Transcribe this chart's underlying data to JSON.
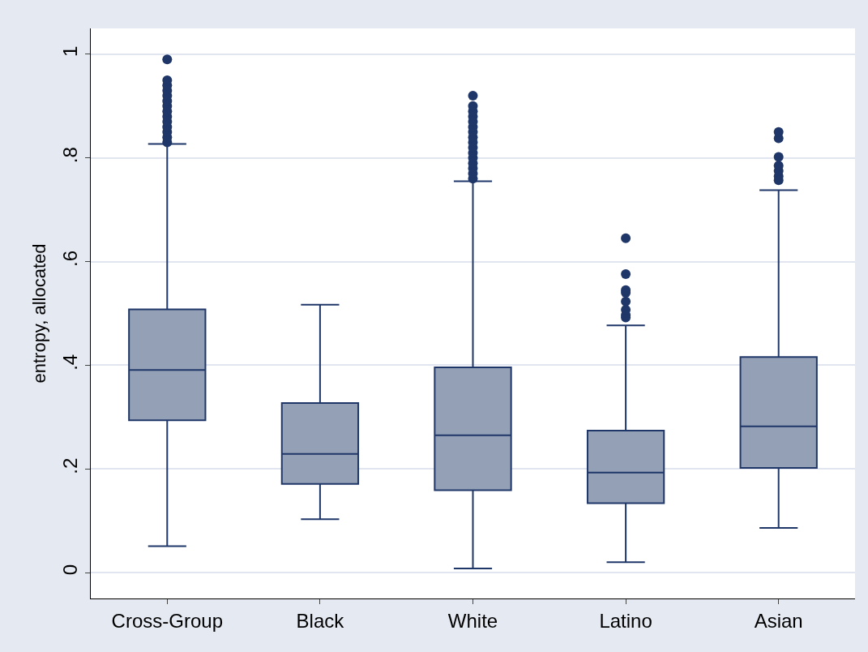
{
  "chart_data": {
    "type": "box",
    "ylabel": "entropy, allocated",
    "categories": [
      "Cross-Group",
      "Black",
      "White",
      "Latino",
      "Asian"
    ],
    "boxes": [
      {
        "low": 0.051,
        "q1": 0.294,
        "median": 0.391,
        "q3": 0.508,
        "high": 0.827,
        "outliers": [
          0.83,
          0.84,
          0.85,
          0.86,
          0.87,
          0.88,
          0.89,
          0.9,
          0.91,
          0.92,
          0.93,
          0.94,
          0.95,
          0.99
        ]
      },
      {
        "low": 0.103,
        "q1": 0.171,
        "median": 0.229,
        "q3": 0.327,
        "high": 0.517
      },
      {
        "low": 0.008,
        "q1": 0.159,
        "median": 0.265,
        "q3": 0.396,
        "high": 0.755,
        "outliers": [
          0.76,
          0.77,
          0.78,
          0.79,
          0.8,
          0.81,
          0.82,
          0.83,
          0.84,
          0.85,
          0.86,
          0.87,
          0.88,
          0.89,
          0.9,
          0.92
        ]
      },
      {
        "low": 0.02,
        "q1": 0.134,
        "median": 0.193,
        "q3": 0.274,
        "high": 0.477,
        "outliers": [
          0.492,
          0.497,
          0.507,
          0.523,
          0.54,
          0.545,
          0.576,
          0.645
        ]
      },
      {
        "low": 0.086,
        "q1": 0.202,
        "median": 0.282,
        "q3": 0.416,
        "high": 0.738,
        "outliers": [
          0.757,
          0.765,
          0.775,
          0.785,
          0.802,
          0.838,
          0.85
        ]
      }
    ],
    "color": "#93a0b6",
    "ylim": [
      -0.05,
      1.05
    ],
    "yticks": [
      0,
      {
        "value": 0.2,
        "label": ".2"
      },
      {
        "value": 0.4,
        "label": ".4"
      },
      {
        "value": 0.6,
        "label": ".6"
      },
      {
        "value": 0.8,
        "label": ".8"
      },
      1
    ],
    "grid": "y",
    "marker": "circle"
  }
}
